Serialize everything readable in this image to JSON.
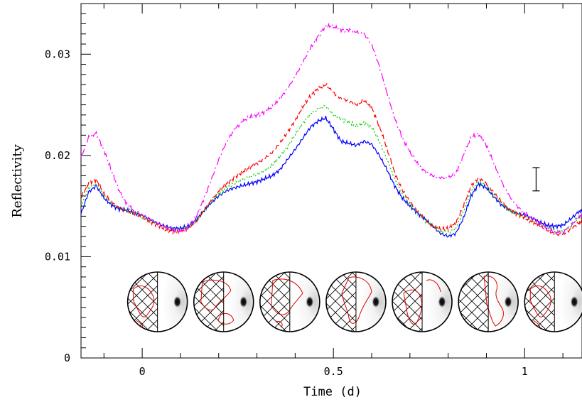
{
  "chart_data": {
    "type": "line",
    "title": "",
    "xlabel": "Time (d)",
    "ylabel": "Reflectivity",
    "xlim": [
      -0.16,
      1.15
    ],
    "ylim": [
      0,
      0.035
    ],
    "x_ticks": [
      {
        "value": 0,
        "label": "0"
      },
      {
        "value": 0.5,
        "label": "0.5"
      },
      {
        "value": 1,
        "label": "1"
      }
    ],
    "y_ticks": [
      {
        "value": 0,
        "label": "0"
      },
      {
        "value": 0.01,
        "label": "0.01"
      },
      {
        "value": 0.02,
        "label": "0.02"
      },
      {
        "value": 0.03,
        "label": "0.03"
      }
    ],
    "x": [
      -0.16,
      -0.14,
      -0.12,
      -0.1,
      -0.08,
      -0.06,
      -0.04,
      -0.02,
      0,
      0.02,
      0.04,
      0.06,
      0.08,
      0.1,
      0.12,
      0.14,
      0.16,
      0.18,
      0.2,
      0.22,
      0.24,
      0.26,
      0.28,
      0.3,
      0.32,
      0.34,
      0.36,
      0.38,
      0.4,
      0.42,
      0.44,
      0.46,
      0.48,
      0.5,
      0.52,
      0.54,
      0.56,
      0.58,
      0.6,
      0.62,
      0.64,
      0.66,
      0.68,
      0.7,
      0.72,
      0.74,
      0.76,
      0.78,
      0.8,
      0.82,
      0.84,
      0.86,
      0.88,
      0.9,
      0.92,
      0.94,
      0.96,
      0.98,
      1,
      1.02,
      1.04,
      1.06,
      1.08,
      1.1,
      1.12,
      1.14,
      1.15
    ],
    "series": [
      {
        "style": "solid",
        "color": "#0000ff",
        "values": [
          0.0142,
          0.0164,
          0.017,
          0.0158,
          0.0151,
          0.0147,
          0.0146,
          0.0143,
          0.0141,
          0.0137,
          0.0133,
          0.013,
          0.0128,
          0.0128,
          0.013,
          0.0136,
          0.0145,
          0.0153,
          0.016,
          0.0165,
          0.0168,
          0.017,
          0.0172,
          0.0174,
          0.0177,
          0.018,
          0.0186,
          0.0196,
          0.0206,
          0.0217,
          0.0228,
          0.0234,
          0.0237,
          0.0226,
          0.0214,
          0.0212,
          0.021,
          0.0214,
          0.0211,
          0.02,
          0.0186,
          0.017,
          0.0158,
          0.015,
          0.0143,
          0.0137,
          0.013,
          0.0123,
          0.012,
          0.0123,
          0.0138,
          0.016,
          0.0172,
          0.0168,
          0.0159,
          0.0151,
          0.0146,
          0.0143,
          0.0141,
          0.0138,
          0.0134,
          0.0131,
          0.013,
          0.0131,
          0.0137,
          0.0144,
          0.0146
        ]
      },
      {
        "style": "dotted",
        "color": "#00cc00",
        "values": [
          0.015,
          0.0168,
          0.0172,
          0.016,
          0.0153,
          0.0148,
          0.0146,
          0.0143,
          0.014,
          0.0136,
          0.0132,
          0.0129,
          0.0127,
          0.0127,
          0.0129,
          0.0135,
          0.0145,
          0.0154,
          0.0162,
          0.0168,
          0.0172,
          0.0176,
          0.0179,
          0.0181,
          0.0185,
          0.019,
          0.0199,
          0.0209,
          0.022,
          0.0232,
          0.0241,
          0.0246,
          0.0249,
          0.024,
          0.0236,
          0.0233,
          0.0229,
          0.0232,
          0.0228,
          0.0214,
          0.0196,
          0.0177,
          0.0162,
          0.0151,
          0.0143,
          0.0136,
          0.013,
          0.0125,
          0.0124,
          0.0128,
          0.0145,
          0.0165,
          0.0175,
          0.017,
          0.0161,
          0.0152,
          0.0146,
          0.0142,
          0.0139,
          0.0136,
          0.0132,
          0.0128,
          0.0125,
          0.0125,
          0.0131,
          0.0138,
          0.014
        ]
      },
      {
        "style": "dashed",
        "color": "#ff0000",
        "values": [
          0.0158,
          0.0173,
          0.0176,
          0.0162,
          0.0154,
          0.0148,
          0.0145,
          0.0142,
          0.0139,
          0.0135,
          0.0131,
          0.0127,
          0.0125,
          0.0125,
          0.0128,
          0.0134,
          0.0145,
          0.0155,
          0.0165,
          0.0172,
          0.0178,
          0.0183,
          0.0188,
          0.0192,
          0.0197,
          0.0203,
          0.0212,
          0.0223,
          0.0235,
          0.0248,
          0.0259,
          0.0266,
          0.027,
          0.0262,
          0.0256,
          0.0254,
          0.025,
          0.0254,
          0.0247,
          0.0229,
          0.0207,
          0.0183,
          0.0166,
          0.0154,
          0.0145,
          0.0137,
          0.013,
          0.0127,
          0.0128,
          0.0133,
          0.015,
          0.017,
          0.0178,
          0.0172,
          0.0163,
          0.0154,
          0.0147,
          0.0142,
          0.0138,
          0.0134,
          0.013,
          0.0126,
          0.0122,
          0.0122,
          0.0127,
          0.0133,
          0.0135
        ]
      },
      {
        "style": "dashdot",
        "color": "#ff00ff",
        "values": [
          0.0198,
          0.0218,
          0.0222,
          0.0205,
          0.0185,
          0.0165,
          0.0152,
          0.0145,
          0.0141,
          0.0137,
          0.0133,
          0.0129,
          0.0126,
          0.0125,
          0.0128,
          0.0138,
          0.0156,
          0.0175,
          0.0196,
          0.0213,
          0.0225,
          0.0233,
          0.0238,
          0.024,
          0.0243,
          0.0248,
          0.0256,
          0.0266,
          0.0278,
          0.0292,
          0.0306,
          0.0318,
          0.0328,
          0.0327,
          0.0324,
          0.0324,
          0.0322,
          0.032,
          0.031,
          0.0288,
          0.0262,
          0.0237,
          0.0218,
          0.0203,
          0.0192,
          0.0184,
          0.018,
          0.0178,
          0.0178,
          0.0182,
          0.02,
          0.0218,
          0.0221,
          0.021,
          0.0192,
          0.0174,
          0.016,
          0.015,
          0.0143,
          0.0138,
          0.0133,
          0.0128,
          0.0124,
          0.0124,
          0.013,
          0.0139,
          0.0141
        ]
      }
    ],
    "error_bar": {
      "x": 1.03,
      "y_low": 0.0165,
      "y_high": 0.0188
    },
    "globe_insets": [
      {
        "center_x": 0.04,
        "features": "north-america-pacific"
      },
      {
        "center_x": 0.213,
        "features": "asia-australia"
      },
      {
        "center_x": 0.386,
        "features": "asia-indian-ocean"
      },
      {
        "center_x": 0.559,
        "features": "africa-europe"
      },
      {
        "center_x": 0.732,
        "features": "south-america-africa"
      },
      {
        "center_x": 0.905,
        "features": "americas-atlantic"
      },
      {
        "center_x": 1.078,
        "features": "north-america-pacific"
      }
    ],
    "legend": "none",
    "grid": false
  }
}
